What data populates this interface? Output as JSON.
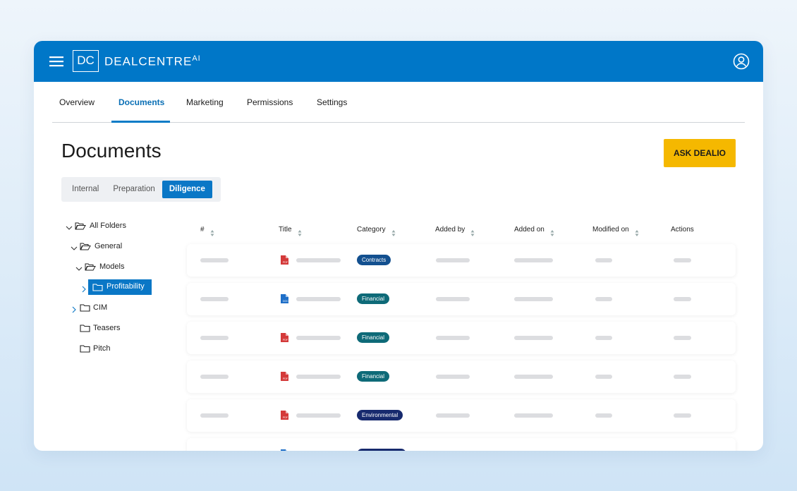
{
  "brand": {
    "logo": "DC",
    "name": "DEALCENTRE",
    "suffix": "AI"
  },
  "tabs": {
    "items": [
      "Overview",
      "Documents",
      "Marketing",
      "Permissions",
      "Settings"
    ],
    "active": 1
  },
  "heading": "Documents",
  "ask_button": "ASK DEALIO",
  "segments": {
    "items": [
      "Internal",
      "Preparation",
      "Diligence"
    ],
    "active": 2
  },
  "tree": [
    {
      "label": "All Folders",
      "depth": 0,
      "expanded": true
    },
    {
      "label": "General",
      "depth": 1,
      "expanded": true
    },
    {
      "label": "Models",
      "depth": 2,
      "expanded": true
    },
    {
      "label": "Profitability",
      "depth": 3,
      "expanded": false,
      "selected": true
    },
    {
      "label": "CIM",
      "depth": 1,
      "expanded": false
    },
    {
      "label": "Teasers",
      "depth": 1,
      "leaf": true
    },
    {
      "label": "Pitch",
      "depth": 1,
      "leaf": true
    }
  ],
  "table": {
    "columns": [
      "#",
      "Title",
      "Category",
      "Added by",
      "Added on",
      "Modified on",
      "Actions"
    ],
    "rows": [
      {
        "file": "PDF",
        "category": "Contracts"
      },
      {
        "file": "DOC",
        "category": "Financial"
      },
      {
        "file": "PDF",
        "category": "Financial"
      },
      {
        "file": "PDF",
        "category": "Financial"
      },
      {
        "file": "PDF",
        "category": "Environmental"
      },
      {
        "file": "DOC",
        "category": null
      }
    ]
  }
}
